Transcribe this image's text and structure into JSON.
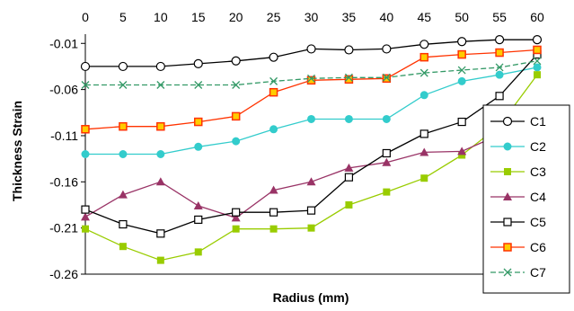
{
  "chart_data": {
    "type": "line",
    "xlabel": "Radius (mm)",
    "ylabel": "Thickness Strain",
    "x": [
      0,
      5,
      10,
      15,
      20,
      25,
      30,
      35,
      40,
      45,
      50,
      55,
      60
    ],
    "x_tick_labels": [
      "0",
      "5",
      "10",
      "15",
      "20",
      "25",
      "30",
      "35",
      "40",
      "45",
      "50",
      "55",
      "60"
    ],
    "xlim": [
      0,
      60
    ],
    "y_ticks": [
      -0.01,
      -0.06,
      -0.11,
      -0.16,
      -0.21,
      -0.26
    ],
    "y_tick_labels": [
      "-0.01",
      "-0.06",
      "-0.11",
      "-0.16",
      "-0.21",
      "-0.26"
    ],
    "ylim": [
      -0.26,
      0.0
    ],
    "x_axis_position": "top",
    "grid": false,
    "legend_position": "right",
    "series": [
      {
        "name": "C1",
        "color": "#000000",
        "line_style": "solid",
        "marker": "circle-open",
        "values": [
          -0.035,
          -0.035,
          -0.035,
          -0.032,
          -0.029,
          -0.025,
          -0.016,
          -0.017,
          -0.016,
          -0.011,
          -0.008,
          -0.006,
          -0.006
        ]
      },
      {
        "name": "C2",
        "color": "#33CCCC",
        "line_style": "solid",
        "marker": "circle-filled",
        "values": [
          -0.13,
          -0.13,
          -0.13,
          -0.122,
          -0.116,
          -0.103,
          -0.092,
          -0.092,
          -0.092,
          -0.066,
          -0.051,
          -0.044,
          -0.036
        ]
      },
      {
        "name": "C3",
        "color": "#99CC00",
        "line_style": "solid",
        "marker": "square-filled",
        "values": [
          -0.211,
          -0.23,
          -0.245,
          -0.236,
          -0.211,
          -0.211,
          -0.21,
          -0.185,
          -0.171,
          -0.156,
          -0.131,
          -0.099,
          -0.044
        ]
      },
      {
        "name": "C4",
        "color": "#993366",
        "line_style": "solid",
        "marker": "triangle-filled",
        "values": [
          -0.198,
          -0.174,
          -0.16,
          -0.186,
          -0.199,
          -0.169,
          -0.16,
          -0.145,
          -0.139,
          -0.128,
          -0.127,
          -0.109,
          -0.105
        ]
      },
      {
        "name": "C5",
        "color": "#000000",
        "line_style": "solid",
        "marker": "square-open",
        "values": [
          -0.19,
          -0.206,
          -0.216,
          -0.201,
          -0.193,
          -0.193,
          -0.191,
          -0.155,
          -0.129,
          -0.108,
          -0.095,
          -0.067,
          -0.022
        ]
      },
      {
        "name": "C6",
        "color": "#FF3300",
        "line_style": "solid",
        "marker": "square-orange",
        "values": [
          -0.103,
          -0.1,
          -0.1,
          -0.095,
          -0.089,
          -0.063,
          -0.05,
          -0.049,
          -0.048,
          -0.025,
          -0.022,
          -0.02,
          -0.017
        ]
      },
      {
        "name": "C7",
        "color": "#339966",
        "line_style": "dashed",
        "marker": "x",
        "values": [
          -0.055,
          -0.055,
          -0.055,
          -0.055,
          -0.055,
          -0.051,
          -0.048,
          -0.047,
          -0.047,
          -0.042,
          -0.039,
          -0.036,
          -0.029
        ]
      }
    ]
  }
}
